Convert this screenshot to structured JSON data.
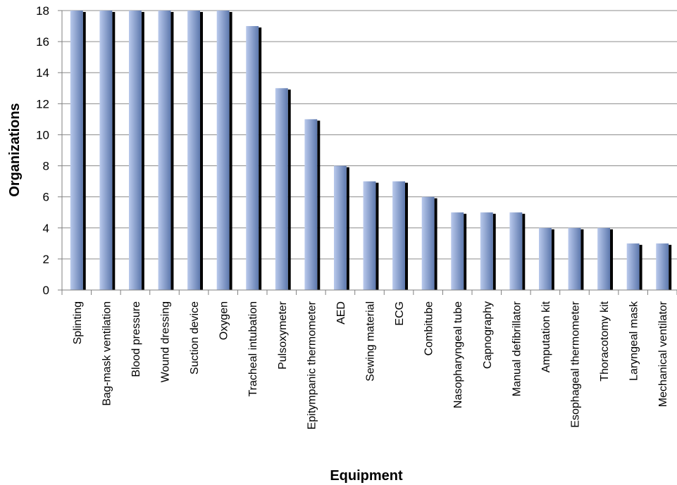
{
  "chart_data": {
    "type": "bar",
    "title": "",
    "xlabel": "Equipment",
    "ylabel": "Organizations",
    "ylim": [
      0,
      18
    ],
    "yticks": [
      "0",
      "2",
      "4",
      "6",
      "8",
      "10",
      "12",
      "14",
      "16",
      "18"
    ],
    "grid": true,
    "legend": "none",
    "categories": [
      "Splinting",
      "Bag-mask ventilation",
      "Blood pressure",
      "Wound dressing",
      "Suction device",
      "Oxygen",
      "Tracheal intubation",
      "Pulsoxymeter",
      "Epitympanic thermometer",
      "AED",
      "Sewing material",
      "ECG",
      "Combitube",
      "Nasopharyngeal tube",
      "Capnography",
      "Manual defibrillator",
      "Amputation kit",
      "Esophageal thermometer",
      "Thoracotomy kit",
      "Laryngeal mask",
      "Mechanical ventilator"
    ],
    "values": [
      18,
      18,
      18,
      18,
      18,
      18,
      17,
      13,
      11,
      8,
      7,
      7,
      6,
      5,
      5,
      5,
      4,
      4,
      4,
      3,
      3
    ],
    "colors": {
      "bar_light": "#b9c9ec",
      "bar_dark": "#5d78ad",
      "shadow": "#000000",
      "grid": "#8c8c8c",
      "axis": "#7f7f7f"
    }
  }
}
